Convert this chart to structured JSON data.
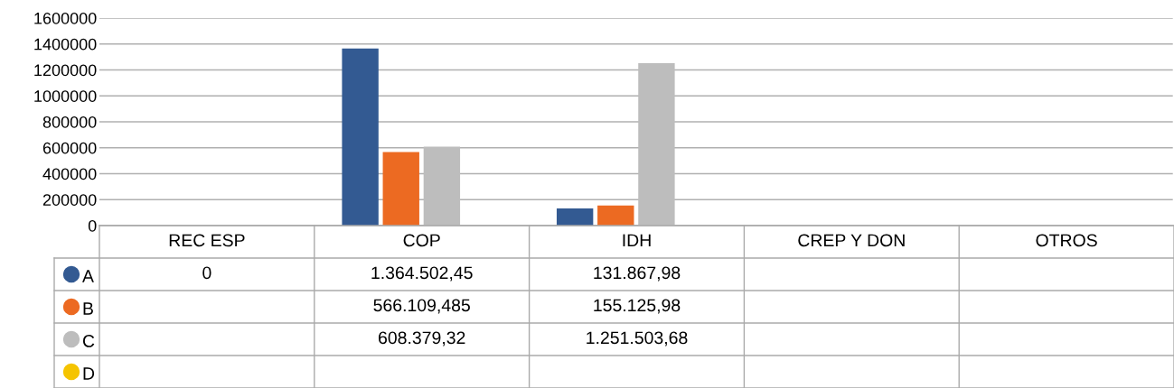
{
  "chart_data": {
    "type": "bar",
    "categories": [
      "REC ESP",
      "COP",
      "IDH",
      "CREP Y DON",
      "OTROS"
    ],
    "series": [
      {
        "name": "A",
        "color": "#335a92",
        "values": [
          0,
          1364502.45,
          131867.98,
          null,
          null
        ],
        "value_labels": [
          "0",
          "1.364.502,45",
          "131.867,98",
          null,
          null
        ]
      },
      {
        "name": "B",
        "color": "#ec6a22",
        "values": [
          null,
          566109.485,
          155125.98,
          null,
          null
        ],
        "value_labels": [
          null,
          "566.109,485",
          "155.125,98",
          null,
          null
        ]
      },
      {
        "name": "C",
        "color": "#bdbdbd",
        "values": [
          null,
          608379.32,
          1251503.68,
          null,
          null
        ],
        "value_labels": [
          null,
          "608.379,32",
          "1.251.503,68",
          null,
          null
        ]
      },
      {
        "name": "D",
        "color": "#f5c400",
        "values": [
          null,
          null,
          null,
          null,
          null
        ]
      }
    ],
    "ylim": [
      0,
      1600000
    ],
    "yticks": [
      0,
      200000,
      400000,
      600000,
      800000,
      1000000,
      1200000,
      1400000,
      1600000
    ],
    "grid": "y",
    "legend": "bottom"
  }
}
